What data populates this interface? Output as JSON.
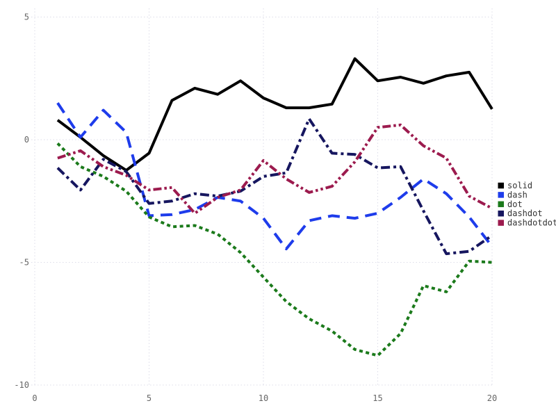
{
  "chart_data": {
    "type": "line",
    "title": "",
    "xlabel": "",
    "ylabel": "",
    "x": [
      1,
      2,
      3,
      4,
      5,
      6,
      7,
      8,
      9,
      10,
      11,
      12,
      13,
      14,
      15,
      16,
      17,
      18,
      19,
      20
    ],
    "series": [
      {
        "name": "solid",
        "color": "#000000",
        "linetype": "solid",
        "values": [
          0.8,
          0.1,
          -0.65,
          -1.25,
          -0.55,
          1.6,
          2.1,
          1.85,
          2.4,
          1.7,
          1.3,
          1.3,
          1.45,
          3.3,
          2.4,
          2.55,
          2.3,
          2.6,
          2.75,
          1.25
        ]
      },
      {
        "name": "dash",
        "color": "#1E3CEB",
        "linetype": "dash",
        "values": [
          1.5,
          0.1,
          1.2,
          0.3,
          -3.1,
          -3.05,
          -2.85,
          -2.35,
          -2.5,
          -3.2,
          -4.45,
          -3.3,
          -3.1,
          -3.2,
          -3.0,
          -2.35,
          -1.6,
          -2.2,
          -3.15,
          -4.35
        ]
      },
      {
        "name": "dot",
        "color": "#1B7A1B",
        "linetype": "dot",
        "values": [
          -0.15,
          -1.1,
          -1.5,
          -2.1,
          -3.15,
          -3.55,
          -3.5,
          -3.85,
          -4.6,
          -5.6,
          -6.6,
          -7.3,
          -7.8,
          -8.55,
          -8.8,
          -7.9,
          -5.95,
          -6.2,
          -4.95,
          -5.0
        ]
      },
      {
        "name": "dashdot",
        "color": "#16165F",
        "linetype": "dashdot",
        "values": [
          -1.15,
          -2.05,
          -0.8,
          -1.3,
          -2.6,
          -2.5,
          -2.2,
          -2.3,
          -2.1,
          -1.5,
          -1.35,
          0.85,
          -0.55,
          -0.6,
          -1.15,
          -1.1,
          -2.9,
          -4.65,
          -4.55,
          -3.9
        ]
      },
      {
        "name": "dashdotdot",
        "color": "#9C1B4E",
        "linetype": "dashdotdot",
        "values": [
          -0.75,
          -0.45,
          -1.1,
          -1.45,
          -2.05,
          -1.95,
          -3.0,
          -2.35,
          -2.05,
          -0.85,
          -1.6,
          -2.15,
          -1.9,
          -0.9,
          0.5,
          0.6,
          -0.25,
          -0.75,
          -2.3,
          -2.8
        ]
      }
    ],
    "x_ticks": [
      0,
      5,
      10,
      15,
      20
    ],
    "y_ticks": [
      -10,
      -5,
      0,
      5
    ],
    "x_tick_labels": [
      "0",
      "5",
      "10",
      "15",
      "20"
    ],
    "y_tick_labels": [
      "-10",
      "-5",
      "0",
      "5"
    ],
    "xlim": [
      0,
      20.6
    ],
    "ylim": [
      -10.6,
      5.6
    ],
    "grid": "dotted",
    "legend_position": "right",
    "legend_items": [
      "solid",
      "dash",
      "dot",
      "dashdot",
      "dashdotdot"
    ]
  },
  "colors": {
    "background": "#ffffff",
    "grid": "#dcdce8",
    "tick_text": "#666666",
    "legend_text": "#333333"
  }
}
